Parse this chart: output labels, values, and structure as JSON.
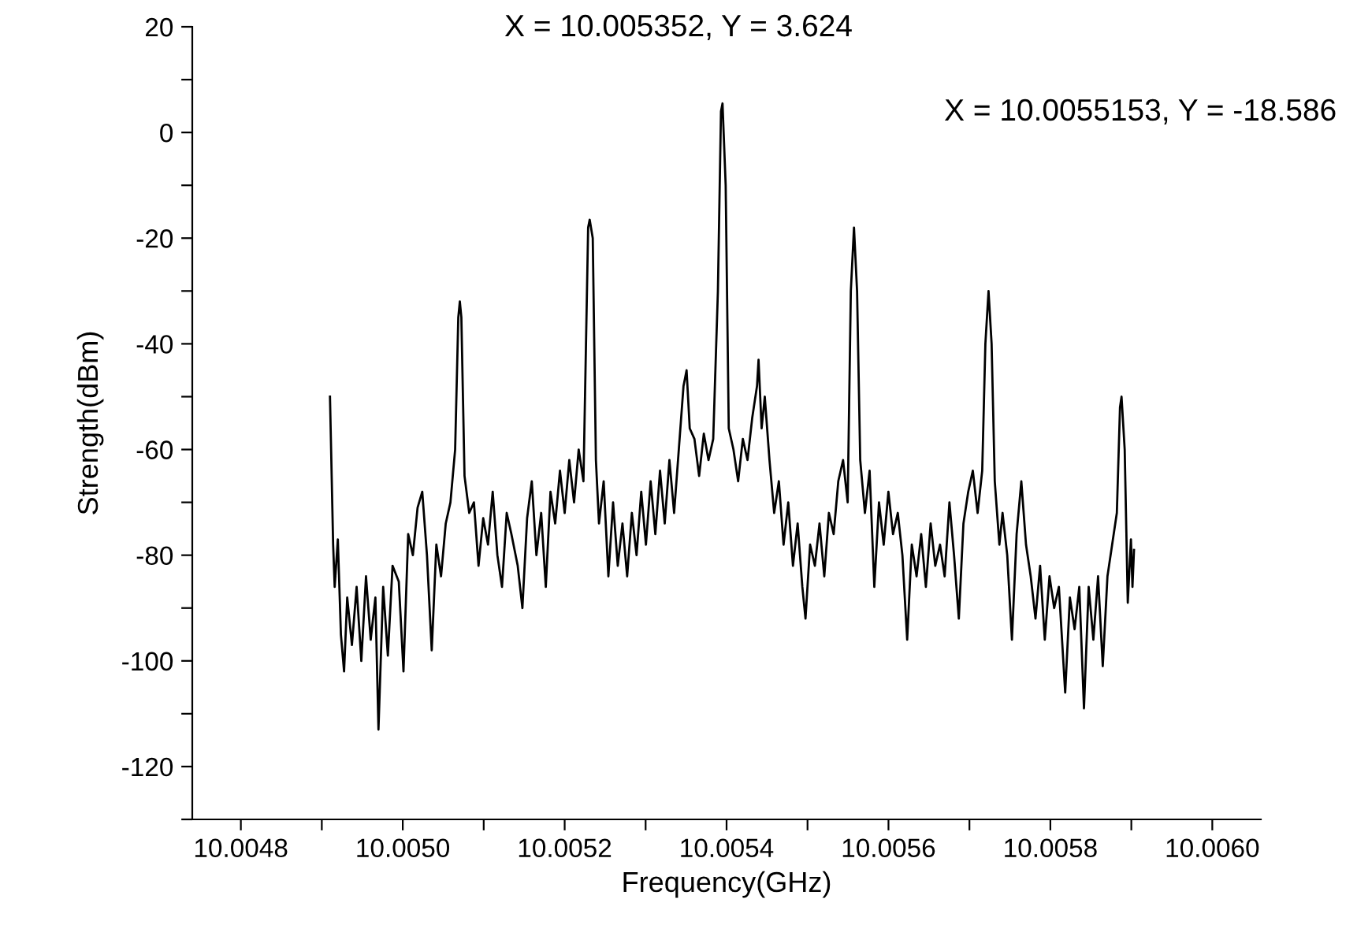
{
  "chart_data": {
    "type": "line",
    "xlabel": "Frequency(GHz)",
    "ylabel": "Strength(dBm)",
    "annotations": [
      "X = 10.005352, Y = 3.624",
      "X = 10.0055153, Y = -18.586"
    ],
    "xlim": [
      10.00474,
      10.00606
    ],
    "xticks": [
      {
        "value": 10.0048,
        "label": "10.0048"
      },
      {
        "value": 10.0049,
        "label": null
      },
      {
        "value": 10.005,
        "label": "10.0050"
      },
      {
        "value": 10.0051,
        "label": null
      },
      {
        "value": 10.0052,
        "label": "10.0052"
      },
      {
        "value": 10.0053,
        "label": null
      },
      {
        "value": 10.0054,
        "label": "10.0054"
      },
      {
        "value": 10.0055,
        "label": null
      },
      {
        "value": 10.0056,
        "label": "10.0056"
      },
      {
        "value": 10.0057,
        "label": null
      },
      {
        "value": 10.0058,
        "label": "10.0058"
      },
      {
        "value": 10.0059,
        "label": null
      },
      {
        "value": 10.006,
        "label": "10.0060"
      }
    ],
    "ylim": [
      -130,
      20
    ],
    "yticks": [
      {
        "value": -130,
        "label": null
      },
      -120,
      {
        "value": -110,
        "label": null
      },
      -100,
      {
        "value": -90,
        "label": null
      },
      -80,
      {
        "value": -70,
        "label": null
      },
      -60,
      {
        "value": -50,
        "label": null
      },
      -40,
      {
        "value": -30,
        "label": null
      },
      -20,
      {
        "value": -10,
        "label": null
      },
      0,
      {
        "value": 10,
        "label": null
      },
      20
    ],
    "grid": false,
    "legend": false,
    "marker": "none",
    "line_style": "solid",
    "series": [
      {
        "color": "#000000",
        "x": [
          10.0049101,
          10.004914,
          10.0049159,
          10.0049198,
          10.0049236,
          10.0049275,
          10.0049314,
          10.0049372,
          10.004943,
          10.0049488,
          10.0049546,
          10.0049604,
          10.0049662,
          10.00497,
          10.0049758,
          10.0049816,
          10.0049874,
          10.0049951,
          10.0050009,
          10.0050067,
          10.0050125,
          10.0050183,
          10.0050241,
          10.0050299,
          10.0050358,
          10.0050415,
          10.0050473,
          10.0050531,
          10.0050589,
          10.0050647,
          10.0050686,
          10.0050705,
          10.0050724,
          10.0050763,
          10.0050821,
          10.0050879,
          10.0050936,
          10.0050994,
          10.0051053,
          10.0051111,
          10.0051169,
          10.0051226,
          10.0051284,
          10.0051342,
          10.005142,
          10.0051478,
          10.0051536,
          10.0051594,
          10.0051651,
          10.005171,
          10.0051767,
          10.0051825,
          10.0051883,
          10.0051942,
          10.0052,
          10.0052057,
          10.0052116,
          10.0052173,
          10.0052232,
          10.005229,
          10.0052309,
          10.0052347,
          10.0052386,
          10.0052424,
          10.0052482,
          10.005254,
          10.0052598,
          10.0052656,
          10.0052714,
          10.0052772,
          10.005283,
          10.0052888,
          10.0052946,
          10.0053004,
          10.0053062,
          10.005312,
          10.0053178,
          10.0053236,
          10.0053294,
          10.0053352,
          10.005341,
          10.0053468,
          10.0053506,
          10.0053545,
          10.0053603,
          10.0053661,
          10.0053719,
          10.0053777,
          10.0053835,
          10.0053893,
          10.0053931,
          10.005395,
          10.0053989,
          10.0054027,
          10.0054085,
          10.0054143,
          10.0054201,
          10.0054259,
          10.0054317,
          10.0054376,
          10.0054395,
          10.0054433,
          10.0054472,
          10.005453,
          10.0054588,
          10.0054646,
          10.0054704,
          10.0054762,
          10.005482,
          10.0054878,
          10.0054936,
          10.0054975,
          10.0055032,
          10.0055091,
          10.0055148,
          10.0055207,
          10.0055264,
          10.0055323,
          10.005538,
          10.0055439,
          10.0055496,
          10.0055535,
          10.0055574,
          10.0055612,
          10.0055651,
          10.0055709,
          10.0055767,
          10.0055825,
          10.0055883,
          10.0055941,
          10.0055999,
          10.0056056,
          10.0056115,
          10.0056172,
          10.0056231,
          10.0056288,
          10.0056347,
          10.0056404,
          10.0056462,
          10.0056521,
          10.0056578,
          10.0056637,
          10.0056694,
          10.0056753,
          10.005681,
          10.0056869,
          10.0056926,
          10.0056985,
          10.0057042,
          10.0057101,
          10.0057158,
          10.0057197,
          10.0057236,
          10.0057274,
          10.0057313,
          10.005737,
          10.0057409,
          10.0057467,
          10.0057525,
          10.0057583,
          10.0057641,
          10.0057699,
          10.0057757,
          10.0057816,
          10.0057873,
          10.0057931,
          10.0057989,
          10.0058047,
          10.0058105,
          10.0058183,
          10.0058241,
          10.0058299,
          10.0058357,
          10.0058415,
          10.0058473,
          10.0058531,
          10.0058589,
          10.0058647,
          10.0058705,
          10.0058763,
          10.0058821,
          10.005886,
          10.0058879,
          10.0058918,
          10.0058956,
          10.0058995,
          10.0059014,
          10.0059033
        ],
        "values": [
          -50,
          -78,
          -86,
          -77,
          -95,
          -102,
          -88,
          -97,
          -86,
          -100,
          -84,
          -96,
          -88,
          -113,
          -86,
          -99,
          -82,
          -85,
          -102,
          -76,
          -80,
          -71,
          -68,
          -80,
          -98,
          -78,
          -84,
          -74,
          -70,
          -60,
          -35,
          -32,
          -35,
          -65,
          -72,
          -70,
          -82,
          -73,
          -78,
          -68,
          -80,
          -86,
          -72,
          -76,
          -82,
          -90,
          -73,
          -66,
          -80,
          -72,
          -86,
          -68,
          -74,
          -64,
          -72,
          -62,
          -70,
          -60,
          -66,
          -18,
          -16.5,
          -20,
          -62,
          -74,
          -66,
          -84,
          -70,
          -82,
          -74,
          -84,
          -72,
          -80,
          -68,
          -78,
          -66,
          -76,
          -64,
          -74,
          -62,
          -72,
          -60,
          -48,
          -45,
          -56,
          -58,
          -65,
          -57,
          -62,
          -58,
          -30,
          4,
          5.5,
          -10,
          -56,
          -60,
          -66,
          -58,
          -62,
          -54,
          -48,
          -43,
          -56,
          -50,
          -62,
          -72,
          -66,
          -78,
          -70,
          -82,
          -74,
          -86,
          -92,
          -78,
          -82,
          -74,
          -84,
          -72,
          -76,
          -66,
          -62,
          -70,
          -30,
          -18,
          -30,
          -62,
          -72,
          -64,
          -86,
          -70,
          -78,
          -68,
          -76,
          -72,
          -80,
          -96,
          -78,
          -84,
          -76,
          -86,
          -74,
          -82,
          -78,
          -84,
          -70,
          -80,
          -92,
          -74,
          -68,
          -64,
          -72,
          -64,
          -40,
          -30,
          -40,
          -66,
          -78,
          -72,
          -80,
          -96,
          -76,
          -66,
          -78,
          -84,
          -92,
          -82,
          -96,
          -84,
          -90,
          -86,
          -106,
          -88,
          -94,
          -86,
          -109,
          -86,
          -96,
          -84,
          -101,
          -84,
          -78,
          -72,
          -52,
          -50,
          -60,
          -89,
          -77,
          -86,
          -79
        ]
      }
    ]
  }
}
